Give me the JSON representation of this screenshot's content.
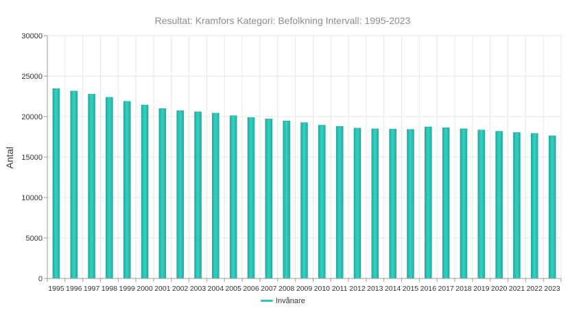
{
  "chart_data": {
    "type": "bar",
    "title": "Resultat: Kramfors Kategori: Befolkning Intervall: 1995-2023",
    "xlabel": "",
    "ylabel": "Antal",
    "ylim": [
      0,
      30000
    ],
    "yticks": [
      0,
      5000,
      10000,
      15000,
      20000,
      25000,
      30000
    ],
    "grid": true,
    "legend_position": "bottom",
    "colors": {
      "bar": "#2ec4b6",
      "bar_dark": "#1a9e93",
      "grid": "#e6e6e6",
      "axis": "#999999"
    },
    "categories": [
      "1995",
      "1996",
      "1997",
      "1998",
      "1999",
      "2000",
      "2001",
      "2002",
      "2003",
      "2004",
      "2005",
      "2006",
      "2007",
      "2008",
      "2009",
      "2010",
      "2011",
      "2012",
      "2013",
      "2014",
      "2015",
      "2016",
      "2017",
      "2018",
      "2019",
      "2020",
      "2021",
      "2022",
      "2023"
    ],
    "series": [
      {
        "name": "Invånare",
        "values": [
          23450,
          23150,
          22780,
          22380,
          21890,
          21440,
          20990,
          20730,
          20590,
          20430,
          20110,
          19880,
          19710,
          19480,
          19260,
          18940,
          18800,
          18570,
          18490,
          18470,
          18420,
          18730,
          18620,
          18490,
          18340,
          18180,
          18030,
          17920,
          17630
        ]
      }
    ]
  }
}
